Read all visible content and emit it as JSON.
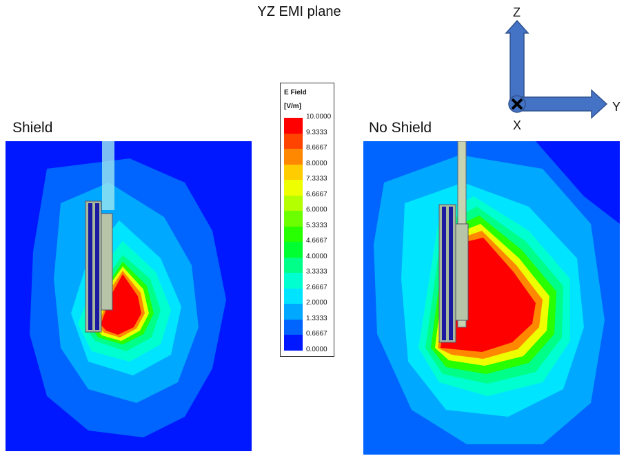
{
  "title": "YZ EMI plane",
  "panels": {
    "left_label": "Shield",
    "right_label": "No Shield"
  },
  "legend": {
    "title_line1": "E Field",
    "title_line2": "[V/m]",
    "ticks": [
      "10.0000",
      "9.3333",
      "8.6667",
      "8.0000",
      "7.3333",
      "6.6667",
      "6.0000",
      "5.3333",
      "4.6667",
      "4.0000",
      "3.3333",
      "2.6667",
      "2.0000",
      "1.3333",
      "0.6667",
      "0.0000"
    ],
    "colors": [
      "#ff0000",
      "#ff4400",
      "#ff8800",
      "#ffcc00",
      "#eeff00",
      "#b4ff00",
      "#6cff00",
      "#28ff00",
      "#00ff30",
      "#00ff88",
      "#00ffd0",
      "#00e4ff",
      "#00a8ff",
      "#0064ff",
      "#0018ff"
    ]
  },
  "axes": {
    "z_label": "Z",
    "y_label": "Y",
    "x_label": "X",
    "arrow_color": "#4472c4"
  }
}
